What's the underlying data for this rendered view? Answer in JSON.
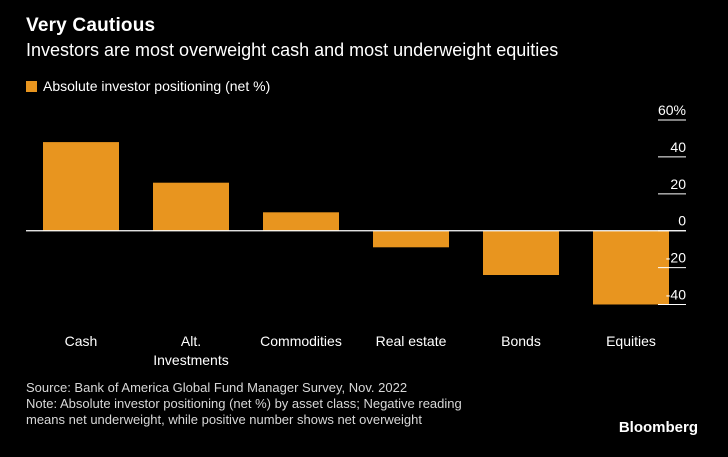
{
  "title": "Very Cautious",
  "subtitle": "Investors are most overweight cash and most underweight equities",
  "colors": {
    "bar": "#E8951F",
    "background": "#000000",
    "text": "#FFFFFF",
    "axis": "#FFFFFF"
  },
  "chart_data": {
    "type": "bar",
    "title": "Very Cautious",
    "subtitle": "Investors are most overweight cash and most underweight equities",
    "legend": [
      "Absolute investor positioning (net %)"
    ],
    "legend_position": "top-left",
    "categories": [
      "Cash",
      "Alt.\nInvestments",
      "Commodities",
      "Real estate",
      "Bonds",
      "Equities"
    ],
    "series": [
      {
        "name": "Absolute investor positioning (net %)",
        "values": [
          48,
          26,
          10,
          -9,
          -24,
          -40
        ]
      }
    ],
    "ylim": [
      -50,
      60
    ],
    "yticks": [
      60,
      40,
      20,
      0,
      -20,
      -40
    ],
    "ytick_labels": [
      "60%",
      "40",
      "20",
      "0",
      "-20",
      "-40"
    ],
    "y_axis_side": "right",
    "grid": false,
    "xlabel": "",
    "ylabel": ""
  },
  "footer": {
    "source": "Source: Bank of America Global Fund Manager Survey, Nov. 2022",
    "note_line1": "Note: Absolute investor positioning (net %) by asset class; Negative reading",
    "note_line2": "means net underweight, while positive number shows net overweight"
  },
  "brand": "Bloomberg"
}
